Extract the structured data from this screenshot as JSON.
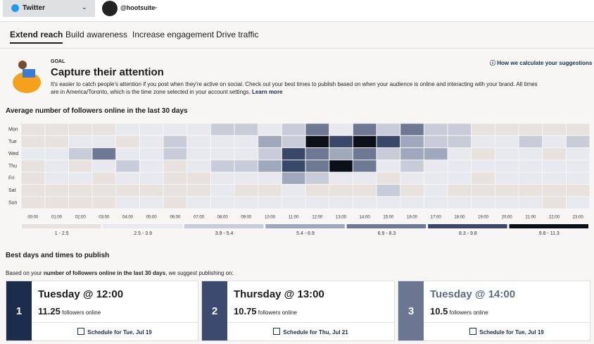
{
  "topbar": {
    "network": "Twitter",
    "account": "@hootsuite"
  },
  "tabs": [
    "Extend reach",
    "Build awareness",
    "Increase engagement",
    "Drive traffic"
  ],
  "goal": {
    "label": "GOAL",
    "title": "Capture their attention",
    "help": "How we calculate your suggestions",
    "text": "It's easier to catch people's attention if you post when they're active on social. Check out your best times to publish based on when your audience is online and interacting with your brand. All times are in America/Toronto, which is the time zone selected in your account settings.",
    "link": "Learn more"
  },
  "chart_data": {
    "type": "heatmap",
    "title": "Average number of followers online in the last 30 days",
    "rows": [
      "Mon",
      "Tue",
      "Wed",
      "Thu",
      "Fri",
      "Sat",
      "Sun"
    ],
    "categories": [
      "00:00",
      "01:00",
      "02:00",
      "03:00",
      "04:00",
      "05:00",
      "06:00",
      "07:00",
      "08:00",
      "09:00",
      "10:00",
      "11:00",
      "12:00",
      "13:00",
      "14:00",
      "15:00",
      "16:00",
      "17:00",
      "18:00",
      "19:00",
      "20:00",
      "21:00",
      "22:00",
      "23:00"
    ],
    "values": [
      [
        2,
        2,
        2,
        2,
        3.2,
        3.2,
        3.2,
        3.2,
        4.6,
        4.6,
        3.2,
        4.6,
        7.6,
        3.2,
        7.6,
        4.6,
        7.6,
        4.6,
        4.6,
        2,
        2,
        2,
        2,
        2
      ],
      [
        2,
        2,
        3.2,
        3.2,
        2,
        3.2,
        4.6,
        3.2,
        3.2,
        3.2,
        6.1,
        4.6,
        11.25,
        9,
        10.5,
        9,
        6.1,
        4.6,
        4.6,
        3.2,
        3.2,
        4.6,
        3.2,
        4.6
      ],
      [
        3.2,
        3.2,
        4.6,
        7.6,
        3.2,
        3.2,
        4.6,
        3.2,
        3.2,
        3.2,
        4.6,
        9,
        7.6,
        6.1,
        7.6,
        4.6,
        6.1,
        6.1,
        3.2,
        2,
        3.2,
        3.2,
        2,
        3.2
      ],
      [
        2,
        3.2,
        2,
        3.2,
        4.6,
        3.2,
        2,
        3.2,
        4.6,
        4.6,
        6.1,
        9,
        7.6,
        10.75,
        7.6,
        3.2,
        4.6,
        3.2,
        3.2,
        3.2,
        3.2,
        3.2,
        3.2,
        3.2
      ],
      [
        2,
        3.2,
        3.2,
        2,
        3.2,
        3.2,
        2,
        2,
        3.2,
        3.2,
        3.2,
        6.1,
        4.6,
        3.2,
        3.2,
        2,
        3.2,
        3.2,
        3.2,
        2,
        3.2,
        3.2,
        3.2,
        3.2
      ],
      [
        2,
        2,
        2,
        2,
        2,
        2,
        2,
        2,
        3.2,
        2,
        2,
        3.2,
        2,
        2,
        2,
        4.6,
        2,
        3.2,
        2,
        2,
        2,
        2,
        2,
        2
      ],
      [
        2,
        2,
        2,
        2,
        3.2,
        3.2,
        2,
        3.2,
        3.2,
        3.2,
        3.2,
        3.2,
        3.2,
        3.2,
        3.2,
        3.2,
        3.2,
        3.2,
        3.2,
        3.2,
        3.2,
        3.2,
        2,
        3.2
      ]
    ],
    "legend": [
      {
        "min": 1,
        "max": 2.5,
        "label": "1 - 2.5",
        "color": "#e7e2dd"
      },
      {
        "min": 2.5,
        "max": 3.9,
        "label": "2.5 - 3.9",
        "color": "#e8e9ef"
      },
      {
        "min": 3.9,
        "max": 5.4,
        "label": "3.9 - 5.4",
        "color": "#c8ccd8"
      },
      {
        "min": 5.4,
        "max": 6.9,
        "label": "5.4 - 6.9",
        "color": "#a0a8bc"
      },
      {
        "min": 6.9,
        "max": 8.3,
        "label": "6.9 - 8.3",
        "color": "#6e7893"
      },
      {
        "min": 8.3,
        "max": 9.8,
        "label": "8.3 - 9.8",
        "color": "#394868"
      },
      {
        "min": 9.8,
        "max": 11.3,
        "label": "9.8 - 11.3",
        "color": "#0b0f17"
      }
    ]
  },
  "best": {
    "title": "Best days and times to publish",
    "intro": [
      "Based on your ",
      "number of followers online in the last 30 days",
      ", we suggest publishing on:"
    ],
    "cards": [
      {
        "rank": "1",
        "when": "Tuesday @ 12:00",
        "value": 11.25,
        "unit": "followers online",
        "action": "Schedule for Tue, Jul 19",
        "color": "#1b2c4d"
      },
      {
        "rank": "2",
        "when": "Thursday @ 13:00",
        "value": 10.75,
        "unit": "followers online",
        "action": "Schedule for Thu, Jul 21",
        "color": "#3b4a6e"
      },
      {
        "rank": "3",
        "when": "Tuesday @ 14:00",
        "value": 10.5,
        "unit": "followers online",
        "action": "Schedule for Tue, Jul 19",
        "color": "#6a7692"
      }
    ]
  }
}
